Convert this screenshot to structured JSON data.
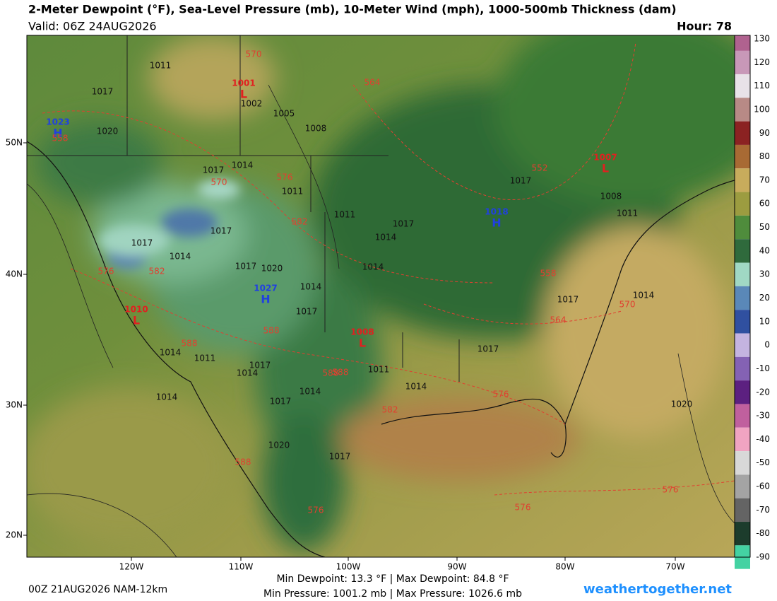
{
  "header": {
    "title": "2-Meter Dewpoint (°F), Sea-Level Pressure (mb), 10-Meter Wind (mph), 1000-500mb Thickness (dam)",
    "valid": "Valid: 06Z 24AUG2026",
    "hour": "Hour: 78"
  },
  "latitude_labels": [
    "50N",
    "40N",
    "30N",
    "20N"
  ],
  "longitude_labels": [
    "120W",
    "110W",
    "100W",
    "90W",
    "80W",
    "70W"
  ],
  "colorbar": {
    "ticks": [
      130,
      120,
      110,
      100,
      90,
      80,
      70,
      60,
      50,
      40,
      30,
      20,
      10,
      0,
      -10,
      -20,
      -30,
      -40,
      -50,
      -60,
      -70,
      -80,
      -90
    ],
    "colors": [
      "#b0628f",
      "#c898b8",
      "#e8e2e8",
      "#b88a86",
      "#8b2222",
      "#a86a34",
      "#c8ac5c",
      "#9c9c40",
      "#4f8c3c",
      "#2f6a3c",
      "#a0d8c4",
      "#5a88b8",
      "#3050a0",
      "#c4b4e0",
      "#8462b4",
      "#5c2080",
      "#c0609e",
      "#f0a4c2",
      "#d8d8d8",
      "#a4a4a4",
      "#646464",
      "#1c3c2c",
      "#44d2a2"
    ]
  },
  "pressure_centers": [
    {
      "symbol": "H",
      "value": 1023
    },
    {
      "symbol": "L",
      "value": 1001
    },
    {
      "symbol": "L",
      "value": 1007
    },
    {
      "symbol": "H",
      "value": 1018
    },
    {
      "symbol": "H",
      "value": 1027
    },
    {
      "symbol": "L",
      "value": 1010
    },
    {
      "symbol": "L",
      "value": 1008
    }
  ],
  "isobar_labels": [
    1011,
    1017,
    1020,
    1002,
    1005,
    1008,
    1017,
    1014,
    1011,
    1011,
    1017,
    1014,
    1017,
    1017,
    1014,
    1017,
    1014,
    1014,
    1017,
    1011,
    1014,
    1014,
    1017,
    1014,
    1017,
    1020,
    1017,
    1014,
    1020,
    1014,
    1011,
    1008,
    1011,
    1017,
    1014,
    1017,
    1020,
    1017
  ],
  "thickness_labels": [
    570,
    564,
    558,
    552,
    576,
    570,
    582,
    588,
    576,
    582,
    588,
    558,
    564,
    570,
    588,
    588,
    576,
    582,
    588,
    576,
    576,
    576
  ],
  "footer": {
    "run": "00Z 21AUG2026 NAM-12km",
    "dewpoint": "Min Dewpoint:  13.3 °F | Max Dewpoint:  84.8 °F",
    "pressure": "Min Pressure: 1001.2 mb | Max Pressure: 1026.6 mb",
    "site": "weathertogether.net"
  }
}
